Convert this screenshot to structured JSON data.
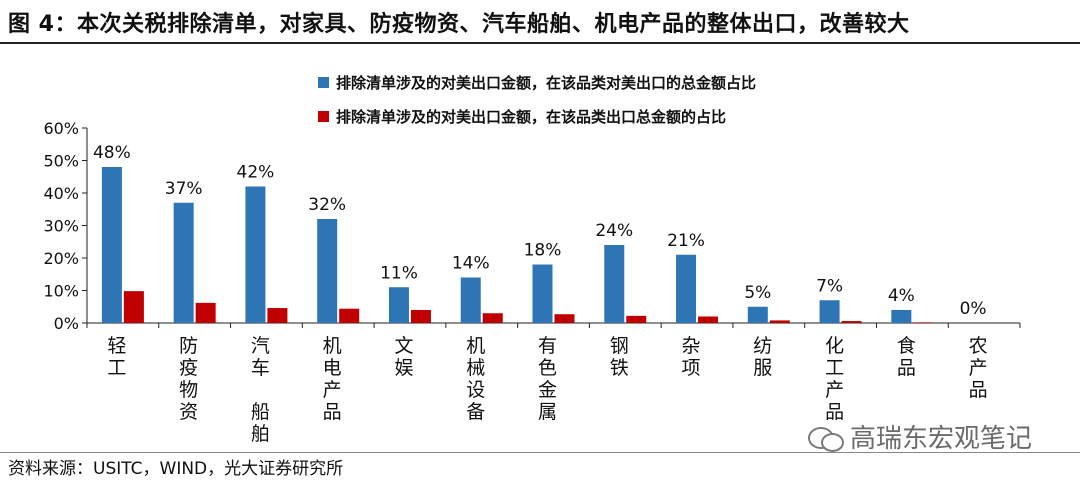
{
  "title": "图 4：本次关税排除清单，对家具、防疫物资、汽车船舶、机电产品的整体出口，改善较大",
  "source": "资料来源：USITC，WIND，光大证券研究所",
  "watermark": "高瑞东宏观笔记",
  "watermark_icon": "wechat-icon",
  "colors": {
    "blue": "#2e75b6",
    "red": "#c00000"
  },
  "chart_data": {
    "type": "bar",
    "categories": [
      "轻工",
      "防疫物资",
      "汽车 船舶",
      "机电产品",
      "文娱",
      "机械设备",
      "有色金属",
      "钢铁",
      "杂项",
      "纺服",
      "化工产品",
      "食品",
      "农产品"
    ],
    "category_lines": [
      [
        "轻",
        "工"
      ],
      [
        "防",
        "疫",
        "物",
        "资"
      ],
      [
        "汽",
        "车",
        "",
        "船",
        "舶"
      ],
      [
        "机",
        "电",
        "产",
        "品"
      ],
      [
        "文",
        "娱"
      ],
      [
        "机",
        "械",
        "设",
        "备"
      ],
      [
        "有",
        "色",
        "金",
        "属"
      ],
      [
        "钢",
        "铁"
      ],
      [
        "杂",
        "项"
      ],
      [
        "纺",
        "服"
      ],
      [
        "化",
        "工",
        "产",
        "品"
      ],
      [
        "食",
        "品"
      ],
      [
        "农",
        "产",
        "品"
      ]
    ],
    "series": [
      {
        "name": "排除清单涉及的对美出口金额，在该品类对美出口的总金额占比",
        "values": [
          48,
          37,
          42,
          32,
          11,
          14,
          18,
          24,
          21,
          5,
          7,
          4,
          0
        ],
        "labels": [
          "48%",
          "37%",
          "42%",
          "32%",
          "11%",
          "14%",
          "18%",
          "24%",
          "21%",
          "5%",
          "7%",
          "4%",
          "0%"
        ]
      },
      {
        "name": "排除清单涉及的对美出口金额，在该品类出口总金额的占比",
        "values": [
          9.8,
          6.2,
          4.6,
          4.4,
          4.0,
          3.0,
          2.7,
          2.2,
          2.0,
          0.8,
          0.6,
          0.2,
          0.0
        ]
      }
    ],
    "ylim": [
      0,
      60
    ],
    "yticks": [
      "0%",
      "10%",
      "20%",
      "30%",
      "40%",
      "50%",
      "60%"
    ],
    "legend": "top-right"
  }
}
